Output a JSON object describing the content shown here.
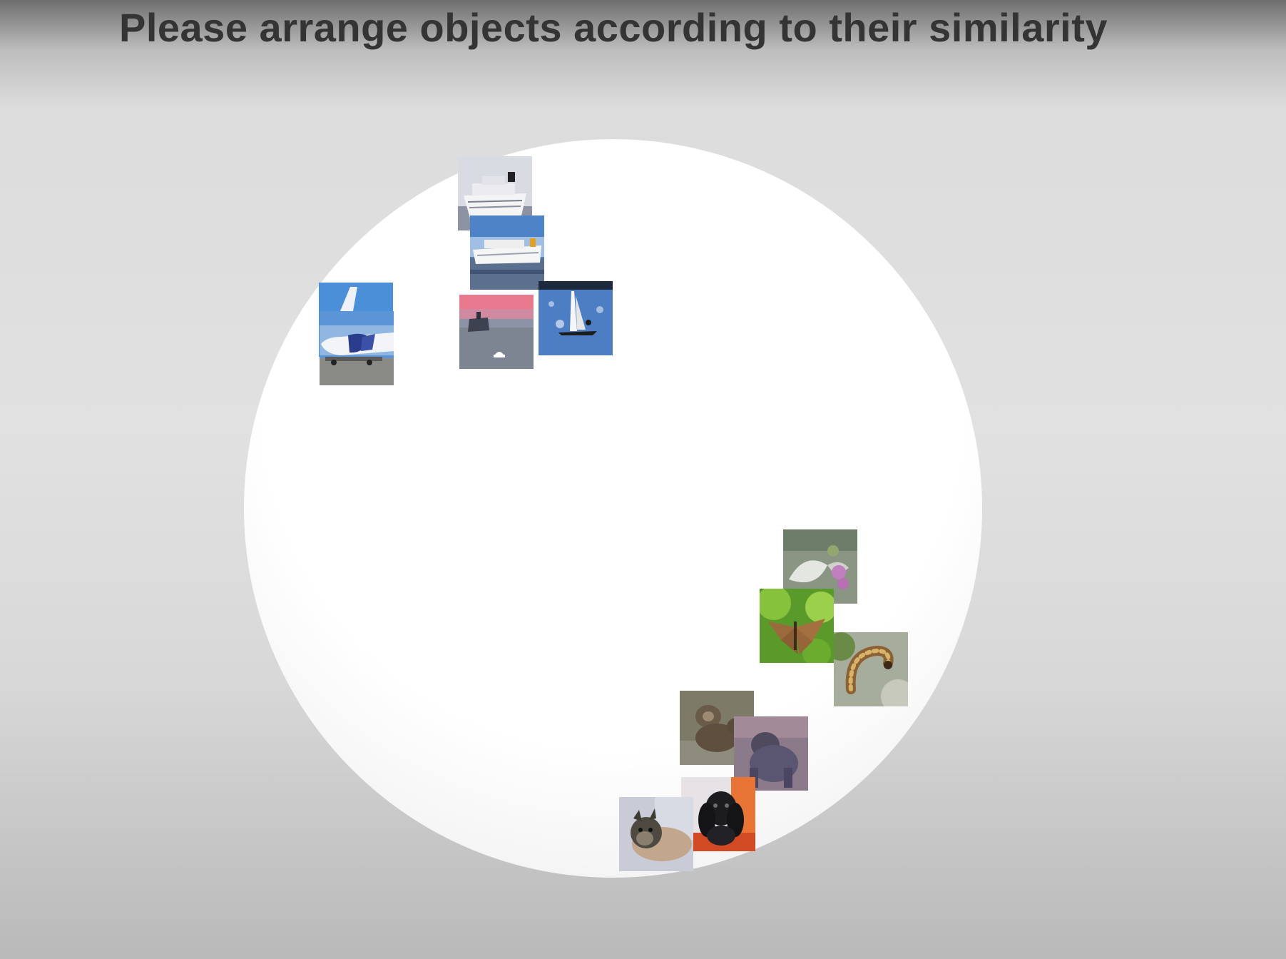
{
  "header": {
    "instruction": "Please arrange objects according to their similarity"
  },
  "arena": {
    "items": [
      {
        "name": "cruise-ship-white-image"
      },
      {
        "name": "cruise-ship-sea-image"
      },
      {
        "name": "airplane-tail-image"
      },
      {
        "name": "airplane-image"
      },
      {
        "name": "ship-sunset-image"
      },
      {
        "name": "sailboat-image"
      },
      {
        "name": "moth-image"
      },
      {
        "name": "butterfly-image"
      },
      {
        "name": "caterpillar-image"
      },
      {
        "name": "monkeys-image"
      },
      {
        "name": "gorilla-image"
      },
      {
        "name": "spaniel-dog-image"
      },
      {
        "name": "terrier-dog-image"
      }
    ]
  },
  "colors": {
    "title": "#343434",
    "arena": "#ffffff"
  }
}
